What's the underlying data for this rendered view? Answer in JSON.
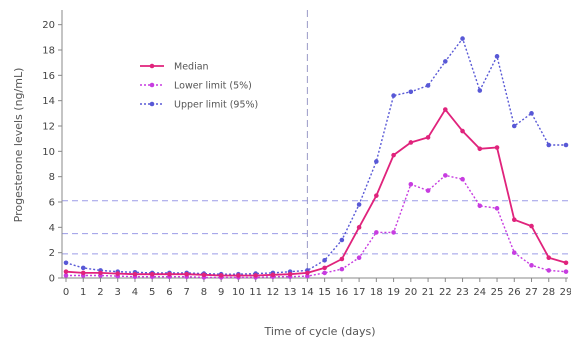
{
  "chart_data": {
    "type": "line",
    "xlabel": "Time of cycle (days)",
    "ylabel": "Progesterone levels (ng/mL)",
    "x": [
      0,
      1,
      2,
      3,
      4,
      5,
      6,
      7,
      8,
      9,
      10,
      11,
      12,
      13,
      14,
      15,
      16,
      17,
      18,
      19,
      20,
      21,
      22,
      23,
      24,
      25,
      26,
      27,
      28,
      29
    ],
    "xlim": [
      0,
      29
    ],
    "ylim": [
      0,
      21
    ],
    "yticks": [
      0,
      2,
      4,
      6,
      8,
      10,
      12,
      14,
      16,
      18,
      20
    ],
    "grid": false,
    "legend": "upper-left",
    "reference_lines": {
      "vertical_x": 14,
      "horizontal_y": [
        6.1,
        3.5,
        1.9
      ],
      "color": "#7b7be0"
    },
    "series": [
      {
        "name": "Median",
        "color": "#e0237c",
        "style": "solid",
        "values": [
          0.5,
          0.4,
          0.4,
          0.35,
          0.3,
          0.3,
          0.3,
          0.3,
          0.25,
          0.2,
          0.2,
          0.2,
          0.25,
          0.3,
          0.4,
          0.8,
          1.5,
          4.0,
          6.5,
          9.7,
          10.7,
          11.1,
          13.3,
          11.6,
          10.2,
          10.3,
          4.6,
          4.1,
          1.6,
          1.2
        ]
      },
      {
        "name": "Lower limit (5%)",
        "color": "#c73ce0",
        "style": "dotted",
        "values": [
          0.2,
          0.2,
          0.2,
          0.15,
          0.1,
          0.1,
          0.1,
          0.1,
          0.05,
          0.05,
          0.05,
          0.05,
          0.1,
          0.1,
          0.15,
          0.4,
          0.7,
          1.6,
          3.6,
          3.6,
          7.4,
          6.9,
          8.1,
          7.8,
          5.7,
          5.5,
          2.0,
          1.0,
          0.6,
          0.5
        ]
      },
      {
        "name": "Upper limit (95%)",
        "color": "#5858d6",
        "style": "dotted",
        "values": [
          1.2,
          0.8,
          0.6,
          0.5,
          0.45,
          0.4,
          0.4,
          0.4,
          0.35,
          0.3,
          0.3,
          0.35,
          0.4,
          0.5,
          0.6,
          1.4,
          3.0,
          5.8,
          9.2,
          14.4,
          14.7,
          15.2,
          17.1,
          18.9,
          14.8,
          17.5,
          12.0,
          13.0,
          10.5,
          10.5
        ]
      }
    ]
  }
}
